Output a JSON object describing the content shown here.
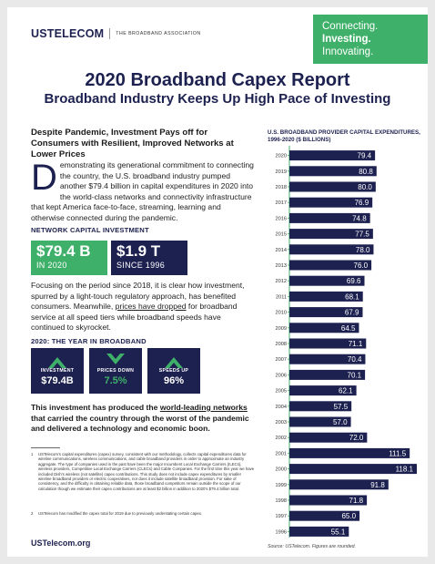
{
  "brand": {
    "logo": "USTELECOM",
    "assoc": "THE BROADBAND ASSOCIATION"
  },
  "tagline": {
    "line1": "Connecting.",
    "line2": "Investing.",
    "line3": "Innovating."
  },
  "title": "2020 Broadband Capex Report",
  "subtitle": "Broadband Industry Keeps Up High Pace of Investing",
  "headline": "Despite Pandemic, Investment Pays off for Consumers with Resilient, Improved Networks at Lower Prices",
  "intro": {
    "dropcap": "D",
    "text": "emonstrating its generational commitment to connecting the country, the U.S. broadband industry pumped another $79.4 billion in capital expenditures in 2020 into the world-class networks and connectivity infrastructure that kept America face-to-face, streaming, learning and otherwise connected during the pandemic."
  },
  "network": {
    "heading": "NETWORK CAPITAL INVESTMENT",
    "box1": {
      "value": "$79.4 B",
      "label": "IN 2020",
      "color": "#3fb069"
    },
    "box2": {
      "value": "$1.9 T",
      "label": "SINCE 1996",
      "color": "#1d2150"
    }
  },
  "focus": {
    "before": "Focusing on the period since 2018, it is clear how investment, spurred by a light-touch regulatory approach, has benefited consumers. Meanwhile, ",
    "link": "prices have dropped",
    "after": " for broadband service at all speed tiers while broadband speeds have continued to skyrocket."
  },
  "year": {
    "heading": "2020: THE YEAR IN BROADBAND",
    "items": [
      {
        "label": "INVESTMENT",
        "value": "$79.4B",
        "value_color": "#ffffff",
        "chevron_color": "#3fb069",
        "direction": "up"
      },
      {
        "label": "PRICES DOWN",
        "value": "7.5%",
        "value_color": "#3fb069",
        "chevron_color": "#3fb069",
        "direction": "down"
      },
      {
        "label": "SPEEDS UP",
        "value": "96%",
        "value_color": "#ffffff",
        "chevron_color": "#3fb069",
        "direction": "up"
      }
    ]
  },
  "summary": {
    "before": "This investment has produced the ",
    "link": "world-leading networks",
    "after": " that carried the country through the worst of the pandemic and delivered a technology and economic boon."
  },
  "footnotes": {
    "fn1_num": "1",
    "fn1": "USTelecom's capital expenditures (capex) survey, consistent with our methodology, collects capital expenditures data for wireline communications, wireless communications, and cable broadband providers in order to approximate an industry aggregate. The type of companies used in the past have been the major Incumbent Local Exchange Carriers (ILECs), wireless providers, Competitive Local Exchange Carriers (CLECs) and Cable Companies. For the first time this year we have included Dish's wireless (not satellite) capex contributions. This study does not include capex expenditures by smaller wireline broadband providers or electric cooperatives, nor does it include satellite broadband provision. For sake of consistency, and the difficulty in obtaining reliable data, those broadband competitors remain outside the scope of our calculation though we estimate their capex contributions are at least $2 billion in addition to 2020's $79.4 billion total.",
    "fn2_num": "2",
    "fn2": "USTelecom has modified the capex total for 2019 due to previously understating certain capex."
  },
  "url": "USTelecom.org",
  "chart_data": {
    "type": "bar",
    "orientation": "horizontal",
    "title": "U.S. BROADBAND PROVIDER CAPITAL EXPENDITURES, 1996-2020 ($ BILLIONS)",
    "categories": [
      "2020",
      "2019",
      "2018",
      "2017",
      "2016",
      "2015",
      "2014",
      "2013",
      "2012",
      "2011",
      "2010",
      "2009",
      "2008",
      "2007",
      "2006",
      "2005",
      "2004",
      "2003",
      "2002",
      "2001",
      "2000",
      "1999",
      "1998",
      "1997",
      "1996"
    ],
    "values": [
      79.4,
      80.8,
      80.0,
      76.9,
      74.8,
      77.5,
      78.0,
      76.0,
      69.6,
      68.1,
      67.9,
      64.5,
      71.1,
      70.4,
      70.1,
      62.1,
      57.5,
      57.0,
      72.0,
      111.5,
      118.1,
      91.8,
      71.8,
      65.0,
      55.1
    ],
    "labels": [
      "79.4",
      "80.8",
      "80.0",
      "76.9",
      "74.8",
      "77.5",
      "78.0",
      "76.0",
      "69.6",
      "68.1",
      "67.9",
      "64.5",
      "71.1",
      "70.4",
      "70.1",
      "62.1",
      "57.5",
      "57.0",
      "72.0",
      "111.5",
      "118.1",
      "91.8",
      "71.8",
      "65.0",
      "55.1"
    ],
    "xlim": [
      0,
      118.1
    ],
    "bar_color": "#1d2150",
    "axis_color": "#3fb069",
    "source": "Source: USTelecom. Figures are rounded."
  }
}
